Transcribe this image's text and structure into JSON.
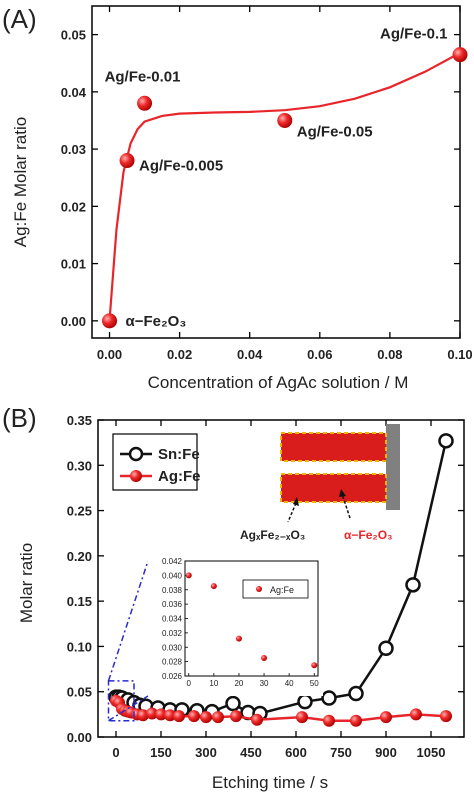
{
  "colors": {
    "ag_series": "#e8252a",
    "sn_series": "#111111",
    "scheme_red": "#d91c1c",
    "scheme_border": "#f2b600",
    "scheme_bar": "#808080",
    "inset_dash": "#2a2ad0"
  },
  "chart_data": [
    {
      "panel": "(A)",
      "type": "scatter",
      "xlabel": "Concentration of AgAc solution / M",
      "ylabel": "Ag:Fe Molar ratio",
      "xlim": [
        -0.005,
        0.1
      ],
      "ylim": [
        -0.003,
        0.055
      ],
      "x_ticks": [
        "0.00",
        "0.02",
        "0.04",
        "0.06",
        "0.08",
        "0.10"
      ],
      "y_ticks": [
        "0.00",
        "0.01",
        "0.02",
        "0.03",
        "0.04",
        "0.05"
      ],
      "points": [
        {
          "x": 0.0,
          "y": 0.0,
          "label": "α−Fe₂O₃"
        },
        {
          "x": 0.005,
          "y": 0.028,
          "label": "Ag/Fe-0.005"
        },
        {
          "x": 0.01,
          "y": 0.038,
          "label": "Ag/Fe-0.01"
        },
        {
          "x": 0.05,
          "y": 0.035,
          "label": "Ag/Fe-0.05"
        },
        {
          "x": 0.1,
          "y": 0.0465,
          "label": "Ag/Fe-0.1"
        }
      ],
      "fit_curve": {
        "x": [
          0,
          0.002,
          0.004,
          0.006,
          0.008,
          0.01,
          0.015,
          0.02,
          0.03,
          0.04,
          0.05,
          0.06,
          0.07,
          0.08,
          0.09,
          0.1
        ],
        "y": [
          0.0,
          0.016,
          0.026,
          0.031,
          0.0335,
          0.0348,
          0.0358,
          0.0362,
          0.0364,
          0.0365,
          0.0368,
          0.0375,
          0.0388,
          0.0408,
          0.0435,
          0.0468
        ]
      }
    },
    {
      "panel": "(B)",
      "type": "line",
      "xlabel": "Etching time / s",
      "ylabel": "Molar ratio",
      "xlim": [
        -60,
        1160
      ],
      "ylim": [
        0.0,
        0.35
      ],
      "x_ticks": [
        "0",
        "150",
        "300",
        "450",
        "600",
        "750",
        "900",
        "1050"
      ],
      "y_ticks": [
        "0.00",
        "0.05",
        "0.10",
        "0.15",
        "0.20",
        "0.25",
        "0.30",
        "0.35"
      ],
      "legend": [
        "Sn:Fe",
        "Ag:Fe"
      ],
      "legend_position": "top-left",
      "series": [
        {
          "name": "Sn:Fe",
          "x": [
            0,
            10,
            20,
            40,
            60,
            80,
            100,
            140,
            180,
            220,
            270,
            320,
            390,
            440,
            480,
            630,
            710,
            800,
            900,
            990,
            1100
          ],
          "y": [
            0.044,
            0.044,
            0.043,
            0.041,
            0.038,
            0.035,
            0.034,
            0.032,
            0.03,
            0.03,
            0.029,
            0.028,
            0.037,
            0.027,
            0.026,
            0.039,
            0.043,
            0.048,
            0.098,
            0.168,
            0.327
          ]
        },
        {
          "name": "Ag:Fe",
          "x": [
            0,
            10,
            20,
            30,
            40,
            50,
            70,
            90,
            120,
            150,
            180,
            210,
            260,
            300,
            340,
            400,
            470,
            620,
            710,
            800,
            900,
            1000,
            1100
          ],
          "y": [
            0.04,
            0.038,
            0.031,
            0.029,
            0.028,
            0.027,
            0.025,
            0.024,
            0.026,
            0.025,
            0.024,
            0.023,
            0.023,
            0.022,
            0.022,
            0.023,
            0.019,
            0.022,
            0.018,
            0.018,
            0.022,
            0.025,
            0.023
          ]
        }
      ],
      "scheme_labels": [
        "AgₓFe₂₋ₓO₃",
        "α−Fe₂O₃"
      ],
      "inset": {
        "type": "scatter",
        "legend": [
          "Ag:Fe"
        ],
        "xlim": [
          0,
          50
        ],
        "ylim": [
          0.026,
          0.042
        ],
        "x_ticks": [
          "0",
          "10",
          "20",
          "30",
          "40",
          "50"
        ],
        "y_ticks": [
          "0.026",
          "0.028",
          "0.030",
          "0.032",
          "0.034",
          "0.036",
          "0.038",
          "0.040",
          "0.042"
        ],
        "x": [
          0,
          10,
          20,
          30,
          50
        ],
        "y": [
          0.04,
          0.0385,
          0.0312,
          0.0285,
          0.0275
        ]
      }
    }
  ]
}
